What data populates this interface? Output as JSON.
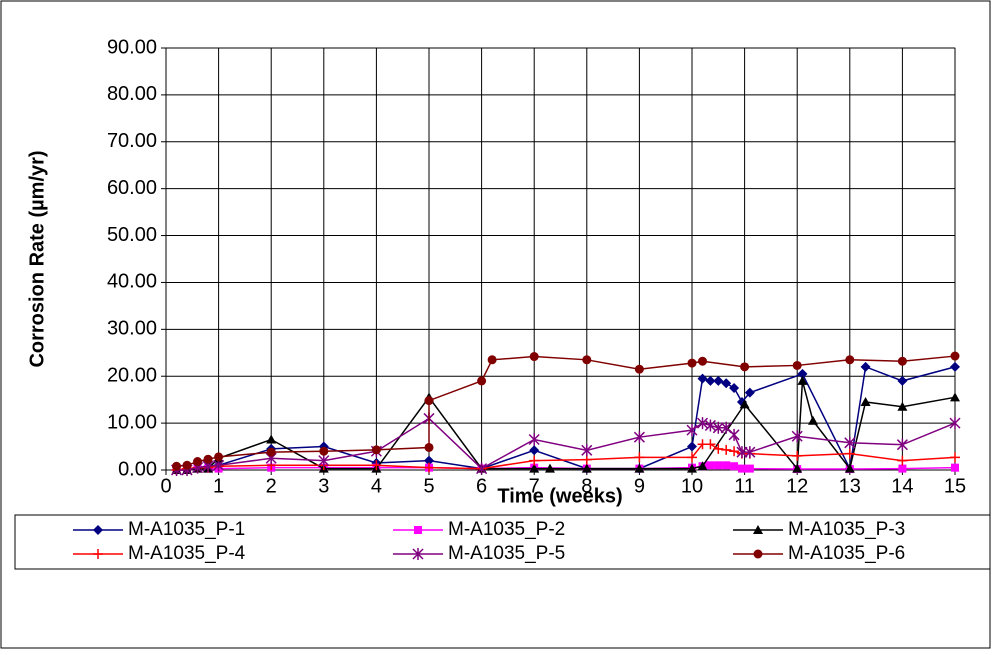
{
  "chart_data": {
    "type": "line",
    "x_label": "Time (weeks)",
    "y_label": "Corrosion Rate (µm/yr)",
    "xlim": [
      0,
      15
    ],
    "xticks": [
      0,
      1,
      2,
      3,
      4,
      5,
      6,
      7,
      8,
      9,
      10,
      11,
      12,
      13,
      14,
      15
    ],
    "ylim": [
      0,
      90
    ],
    "yticks": [
      {
        "value": 0,
        "label": "0.00"
      },
      {
        "value": 10,
        "label": "10.00"
      },
      {
        "value": 20,
        "label": "20.00"
      },
      {
        "value": 30,
        "label": "30.00"
      },
      {
        "value": 40,
        "label": "40.00"
      },
      {
        "value": 50,
        "label": "50.00"
      },
      {
        "value": 60,
        "label": "60.00"
      },
      {
        "value": 70,
        "label": "70.00"
      },
      {
        "value": 80,
        "label": "80.00"
      },
      {
        "value": 90,
        "label": "90.00"
      }
    ],
    "grid": true,
    "legend": "bottom",
    "series": [
      {
        "name": "M-A1035_P-1",
        "color": "#000080",
        "marker": "diamond",
        "x": [
          0.2,
          0.4,
          0.6,
          0.8,
          1,
          2,
          3,
          4,
          5,
          6,
          7,
          8,
          9,
          10,
          10.2,
          10.35,
          10.5,
          10.65,
          10.8,
          10.95,
          11.1,
          12.1,
          13,
          13.3,
          14,
          15
        ],
        "values": [
          0,
          0.2,
          0.5,
          0.8,
          1,
          4.5,
          5,
          1.5,
          2,
          0.3,
          4.2,
          0.3,
          0.3,
          5,
          19.5,
          19,
          19,
          18.5,
          17.5,
          14.5,
          16.5,
          20.5,
          0.3,
          22,
          19,
          22
        ]
      },
      {
        "name": "M-A1035_P-2",
        "color": "#ff00ff",
        "marker": "square",
        "x": [
          0.2,
          0.4,
          0.6,
          0.8,
          1,
          2,
          3,
          4,
          5,
          6,
          7,
          8,
          9,
          10,
          10.2,
          10.35,
          10.5,
          10.65,
          10.8,
          10.95,
          11.1,
          12,
          13,
          14,
          15
        ],
        "values": [
          0,
          0,
          0.3,
          0.3,
          0.3,
          0.5,
          0.5,
          0.5,
          0.5,
          0.3,
          0.5,
          0.3,
          0.3,
          0.5,
          0.8,
          1,
          1,
          1,
          0.8,
          0.3,
          0.3,
          0.2,
          0.2,
          0.3,
          0.5
        ]
      },
      {
        "name": "M-A1035_P-3",
        "color": "#000000",
        "marker": "triangle",
        "x": [
          0.2,
          0.4,
          0.6,
          0.8,
          1,
          2,
          3,
          4,
          5,
          6,
          7,
          7.3,
          8,
          9,
          10,
          10.2,
          11,
          12,
          12.1,
          12.3,
          13,
          13.3,
          14,
          15
        ],
        "values": [
          0,
          0,
          0.3,
          0.3,
          2.5,
          6.5,
          0.3,
          0.3,
          15.5,
          0.3,
          0.3,
          0.3,
          0.3,
          0.3,
          0.3,
          0.8,
          14,
          0.3,
          19,
          10.5,
          0.3,
          14.5,
          13.5,
          15.5
        ]
      },
      {
        "name": "M-A1035_P-4",
        "color": "#ff0000",
        "marker": "plus",
        "x": [
          0.2,
          0.4,
          0.6,
          0.8,
          1,
          2,
          3,
          4,
          5,
          6,
          7,
          8,
          9,
          10,
          10.2,
          10.35,
          10.5,
          10.65,
          10.8,
          10.95,
          11.1,
          12,
          13,
          14,
          15
        ],
        "values": [
          0,
          0.3,
          0.5,
          0.5,
          0.8,
          1,
          1,
          1,
          0.5,
          0.3,
          2,
          2.2,
          2.7,
          2.7,
          5.5,
          5.5,
          4.5,
          4.3,
          4,
          3.5,
          3.5,
          3,
          3.5,
          2,
          2.7
        ]
      },
      {
        "name": "M-A1035_P-5",
        "color": "#800080",
        "marker": "star",
        "x": [
          0.2,
          0.4,
          0.6,
          0.8,
          1,
          2,
          3,
          4,
          5,
          6,
          7,
          8,
          9,
          10,
          10.2,
          10.35,
          10.5,
          10.65,
          10.8,
          10.95,
          11.1,
          12,
          13,
          14,
          15
        ],
        "values": [
          0,
          0,
          0.5,
          0.8,
          1,
          2.5,
          2,
          4,
          11,
          0.3,
          6.5,
          4.2,
          7,
          8.5,
          10,
          9.5,
          9,
          9,
          7.5,
          3.8,
          3.8,
          7.2,
          5.8,
          5.4,
          10
        ]
      },
      {
        "name": "M-A1035_P-6",
        "color": "#800000",
        "marker": "circle",
        "x": [
          0.2,
          0.4,
          0.6,
          0.8,
          1,
          2,
          3,
          4,
          5,
          5,
          6,
          6.2,
          7,
          8,
          9,
          10,
          10.2,
          11,
          12,
          13,
          14,
          15
        ],
        "values": [
          0.8,
          1,
          1.8,
          2.3,
          2.8,
          3.8,
          4,
          4.3,
          4.8,
          14.8,
          19,
          23.5,
          24.2,
          23.5,
          21.5,
          22.8,
          23.2,
          22,
          22.3,
          23.5,
          23.2,
          24.3
        ]
      }
    ]
  }
}
